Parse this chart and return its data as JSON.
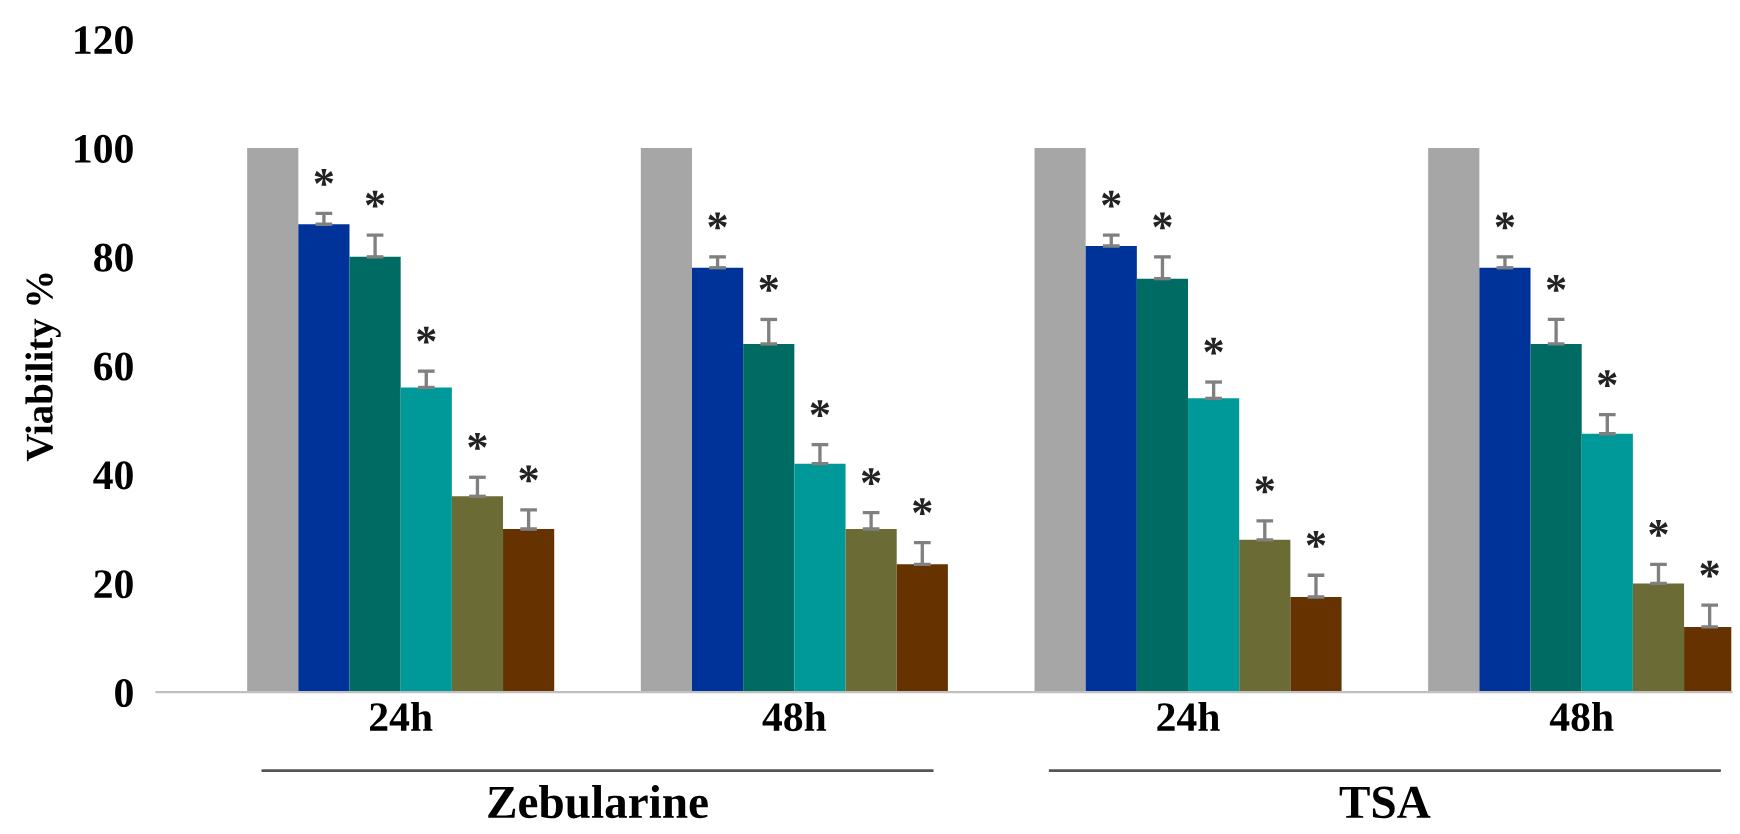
{
  "chart_data": {
    "type": "bar",
    "ylabel": "Viability %",
    "categories": [
      "24h",
      "48h",
      "24h",
      "48h"
    ],
    "series": [
      {
        "color": "#a6a6a6",
        "values": [
          100,
          100,
          100,
          100
        ]
      },
      {
        "color": "#003399",
        "values": [
          86,
          78,
          82,
          78
        ],
        "errors": [
          [
            86,
            88
          ],
          [
            78,
            80
          ],
          [
            82,
            84
          ],
          [
            78,
            80
          ]
        ],
        "value_labels": [
          "*",
          "*",
          "*",
          "*"
        ]
      },
      {
        "color": "#006b63",
        "values": [
          80,
          64,
          76,
          64
        ],
        "errors": [
          [
            80,
            84
          ],
          [
            64,
            68.5
          ],
          [
            76,
            80
          ],
          [
            64,
            68.5
          ]
        ],
        "value_labels": [
          "*",
          "*",
          "*",
          "*"
        ]
      },
      {
        "color": "#009999",
        "values": [
          56,
          42,
          54,
          47.5
        ],
        "errors": [
          [
            56,
            59
          ],
          [
            42,
            45.5
          ],
          [
            54,
            57
          ],
          [
            47.5,
            51
          ]
        ],
        "value_labels": [
          "*",
          "*",
          "*",
          "*"
        ]
      },
      {
        "color": "#6b6b35",
        "values": [
          36,
          30,
          28,
          20
        ],
        "errors": [
          [
            36,
            39.5
          ],
          [
            30,
            33
          ],
          [
            28,
            31.5
          ],
          [
            20,
            23.5
          ]
        ],
        "value_labels": [
          "*",
          "*",
          "*",
          "*"
        ]
      },
      {
        "color": "#663300",
        "values": [
          30,
          23.5,
          17.5,
          12
        ],
        "errors": [
          [
            30,
            33.5
          ],
          [
            23.5,
            27.5
          ],
          [
            17.5,
            21.5
          ],
          [
            12,
            16
          ]
        ],
        "value_labels": [
          "*",
          "*",
          "*",
          "*"
        ]
      }
    ],
    "ylim": [
      0,
      120
    ],
    "yticks": [
      0,
      20,
      40,
      60,
      80,
      100,
      120
    ],
    "grid": false,
    "legend": false,
    "annotations": [
      "Zebularine",
      "TSA"
    ]
  }
}
